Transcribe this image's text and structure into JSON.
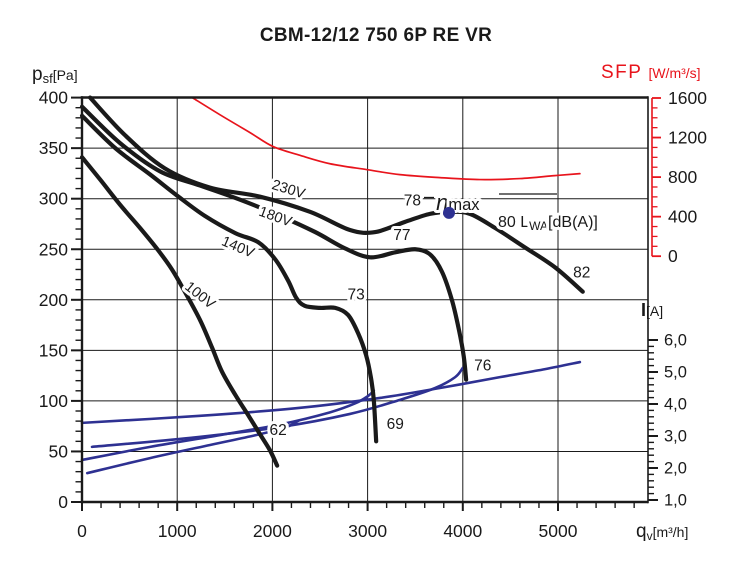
{
  "title": "CBM-12/12 750 6P RE VR",
  "axes": {
    "pressure": {
      "sym": "p",
      "sub": "sf",
      "unit": "[Pa]",
      "ticks": [
        "400",
        "350",
        "300",
        "250",
        "200",
        "150",
        "100",
        "50",
        "0"
      ],
      "tick_values": [
        400,
        350,
        300,
        250,
        200,
        150,
        100,
        50,
        0
      ]
    },
    "flow": {
      "sym": "q",
      "sub": "v",
      "unit": "[m³/h]",
      "ticks": [
        "0",
        "1000",
        "2000",
        "3000",
        "4000",
        "5000"
      ],
      "tick_values": [
        0,
        1000,
        2000,
        3000,
        4000,
        5000
      ]
    },
    "sfp": {
      "label": "SFP",
      "unit": "[W/m³/s]",
      "ticks": [
        "1600",
        "1200",
        "800",
        "400",
        "0"
      ],
      "tick_values": [
        1600,
        1200,
        800,
        400,
        0
      ]
    },
    "current": {
      "label": "I",
      "unit": "[A]",
      "ticks": [
        "6,0",
        "5,0",
        "4,0",
        "3,0",
        "2,0",
        "1,0"
      ],
      "tick_values": [
        6,
        5,
        4,
        3,
        2,
        1
      ]
    }
  },
  "colors": {
    "black": "#1a1a1a",
    "blue": "#2e3192",
    "red": "#e8141c"
  },
  "chart_data": {
    "type": "line",
    "title": "CBM-12/12 750 6P RE VR",
    "x_axis": {
      "label": "qv [m³/h]",
      "range": [
        0,
        5950
      ],
      "major_step": 1000,
      "minor_step": 200,
      "gridlines": true
    },
    "y_axis_left": {
      "label": "psf [Pa]",
      "range": [
        0,
        400
      ],
      "major_step": 50,
      "minor_step": 10,
      "gridlines": true
    },
    "y_axis_right_sfp": {
      "label": "SFP [W/m³/s]",
      "range": [
        0,
        1600
      ],
      "major_step": 400,
      "minor_step": 100
    },
    "y_axis_right_current": {
      "label": "I [A]",
      "range": [
        1,
        6
      ],
      "major_step": 1,
      "minor_step": 0.2
    },
    "pressure_curves": [
      {
        "name": "230V",
        "label_pos": {
          "qv": 2155,
          "p": 305,
          "rot": 17
        },
        "points": [
          [
            85,
            400
          ],
          [
            450,
            363
          ],
          [
            870,
            330
          ],
          [
            1345,
            311
          ],
          [
            1870,
            302
          ],
          [
            2395,
            287
          ],
          [
            2815,
            269
          ],
          [
            3080,
            267
          ],
          [
            3390,
            277
          ],
          [
            3655,
            285
          ],
          [
            3865,
            287
          ],
          [
            4075,
            285
          ],
          [
            4340,
            271
          ],
          [
            4650,
            252
          ],
          [
            4970,
            232
          ],
          [
            5260,
            208
          ]
        ]
      },
      {
        "name": "180V",
        "label_pos": {
          "qv": 2015,
          "p": 278,
          "rot": 20
        },
        "points": [
          [
            0,
            391
          ],
          [
            400,
            355
          ],
          [
            820,
            327
          ],
          [
            1240,
            313
          ],
          [
            1660,
            299
          ],
          [
            2080,
            283
          ],
          [
            2450,
            267
          ],
          [
            2760,
            251
          ],
          [
            3025,
            242
          ],
          [
            3290,
            247
          ],
          [
            3500,
            250
          ],
          [
            3655,
            245
          ],
          [
            3780,
            228
          ],
          [
            3885,
            200
          ],
          [
            3960,
            170
          ],
          [
            4010,
            144
          ],
          [
            4035,
            121
          ]
        ]
      },
      {
        "name": "140V",
        "label_pos": {
          "qv": 1620,
          "p": 248,
          "rot": 23
        },
        "points": [
          [
            0,
            382
          ],
          [
            350,
            350
          ],
          [
            715,
            324
          ],
          [
            1000,
            303
          ],
          [
            1290,
            283
          ],
          [
            1610,
            266
          ],
          [
            1850,
            257
          ],
          [
            2030,
            240
          ],
          [
            2165,
            219
          ],
          [
            2250,
            202
          ],
          [
            2340,
            194
          ],
          [
            2500,
            192
          ],
          [
            2660,
            192
          ],
          [
            2795,
            185
          ],
          [
            2900,
            167
          ],
          [
            2985,
            145
          ],
          [
            3035,
            123
          ],
          [
            3065,
            101
          ],
          [
            3090,
            60
          ]
        ]
      },
      {
        "name": "100V",
        "label_pos": {
          "qv": 1210,
          "p": 201,
          "rot": 39
        },
        "points": [
          [
            0,
            341
          ],
          [
            190,
            319
          ],
          [
            400,
            294
          ],
          [
            610,
            271
          ],
          [
            800,
            249
          ],
          [
            945,
            230
          ],
          [
            1080,
            208
          ],
          [
            1240,
            180
          ],
          [
            1365,
            153
          ],
          [
            1470,
            129
          ],
          [
            1610,
            106
          ],
          [
            1745,
            86
          ],
          [
            1870,
            67
          ],
          [
            1975,
            51
          ],
          [
            2050,
            36
          ]
        ]
      }
    ],
    "sfp_curve": {
      "name": "SFP",
      "points": [
        [
          1165,
          1600
        ],
        [
          1450,
          1430
        ],
        [
          1765,
          1250
        ],
        [
          2005,
          1110
        ],
        [
          2290,
          1020
        ],
        [
          2605,
          935
        ],
        [
          2995,
          875
        ],
        [
          3340,
          825
        ],
        [
          3760,
          795
        ],
        [
          4180,
          775
        ],
        [
          4600,
          785
        ],
        [
          4965,
          815
        ],
        [
          5230,
          835
        ]
      ]
    },
    "current_curves": [
      {
        "name": "230V",
        "points": [
          [
            0,
            3.41
          ],
          [
            1240,
            3.63
          ],
          [
            2290,
            3.88
          ],
          [
            3130,
            4.19
          ],
          [
            3760,
            4.5
          ],
          [
            4390,
            4.84
          ],
          [
            4865,
            5.09
          ],
          [
            5230,
            5.31
          ]
        ]
      },
      {
        "name": "180V",
        "points": [
          [
            105,
            2.66
          ],
          [
            1135,
            2.94
          ],
          [
            2080,
            3.28
          ],
          [
            2815,
            3.69
          ],
          [
            3340,
            4.13
          ],
          [
            3710,
            4.5
          ],
          [
            3920,
            4.84
          ],
          [
            4000,
            5.13
          ]
        ]
      },
      {
        "name": "140V",
        "points": [
          [
            0,
            2.25
          ],
          [
            715,
            2.66
          ],
          [
            1450,
            3.03
          ],
          [
            2080,
            3.36
          ],
          [
            2605,
            3.74
          ],
          [
            2870,
            4.02
          ],
          [
            3005,
            4.25
          ],
          [
            3065,
            4.42
          ]
        ]
      },
      {
        "name": "100V",
        "points": [
          [
            55,
            1.84
          ],
          [
            715,
            2.31
          ],
          [
            1345,
            2.72
          ],
          [
            1815,
            3.02
          ],
          [
            2130,
            3.26
          ],
          [
            2270,
            3.47
          ]
        ]
      }
    ],
    "noise_labels": [
      {
        "text": "62",
        "qv": 2060,
        "p": 71
      },
      {
        "text": "69",
        "qv": 3290,
        "p": 77
      },
      {
        "text": "73",
        "qv": 2880,
        "p": 205
      },
      {
        "text": "76",
        "qv": 4210,
        "p": 135
      },
      {
        "text": "77",
        "qv": 3360,
        "p": 264
      },
      {
        "text": "78",
        "qv": 3470,
        "p": 298
      },
      {
        "text": "82",
        "qv": 5250,
        "p": 227
      }
    ],
    "eta_max": {
      "eta": "η",
      "suffix": "max",
      "label_qv": 3720,
      "label_p": 295,
      "dot_qv": 3855,
      "dot_p": 286
    },
    "lwa_legend": {
      "prefix": "80 L",
      "sub": "WA",
      "suffix": "[dB(A)]",
      "qv": 4370,
      "p": 277
    }
  }
}
